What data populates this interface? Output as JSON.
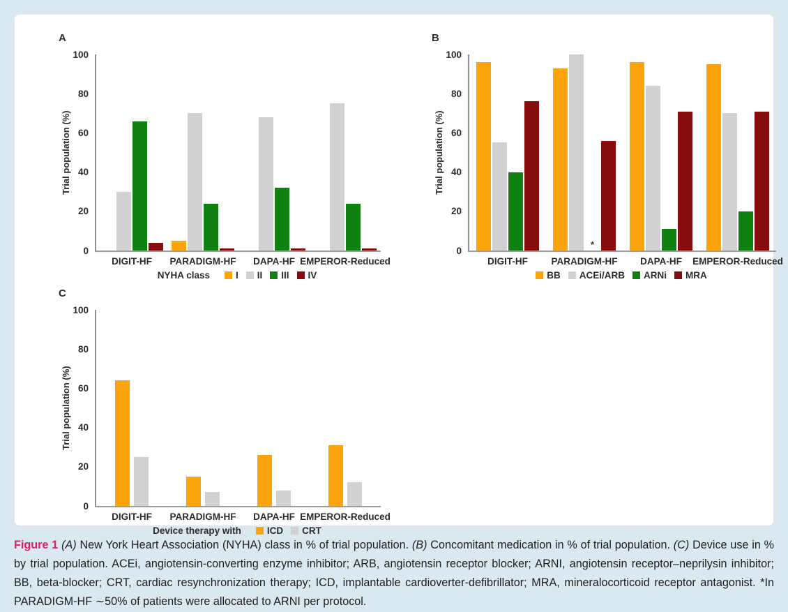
{
  "figure": {
    "page_background": "#dae8f0",
    "panel_background": "#ffffff"
  },
  "colors": {
    "orange": "#fca40e",
    "gray": "#d1d1d1",
    "green": "#0e8110",
    "maroon": "#870c0e",
    "figure_label_pink": "#e21a5f"
  },
  "chart_data": [
    {
      "type": "bar",
      "panel": "A",
      "ylabel": "Trial population (%)",
      "ylim": [
        0,
        100
      ],
      "yticks": [
        0,
        20,
        40,
        60,
        80,
        100
      ],
      "grid": false,
      "legend_position": "bottom",
      "legend_prefix": "NYHA class",
      "categories": [
        "DIGIT-HF",
        "PARADIGM-HF",
        "DAPA-HF",
        "EMPEROR-Reduced"
      ],
      "series": [
        {
          "name": "I",
          "color": "#fca40e",
          "values": [
            0,
            5,
            0,
            0
          ]
        },
        {
          "name": "II",
          "color": "#d1d1d1",
          "values": [
            30,
            70,
            68,
            75
          ]
        },
        {
          "name": "III",
          "color": "#0e8110",
          "values": [
            66,
            24,
            32,
            24
          ]
        },
        {
          "name": "IV",
          "color": "#870c0e",
          "values": [
            4,
            1,
            1,
            1
          ]
        }
      ]
    },
    {
      "type": "bar",
      "panel": "B",
      "ylabel": "Trial population (%)",
      "ylim": [
        0,
        100
      ],
      "yticks": [
        0,
        20,
        40,
        60,
        80,
        100
      ],
      "grid": false,
      "legend_position": "bottom",
      "legend_prefix": "",
      "null_marker": "*",
      "categories": [
        "DIGIT-HF",
        "PARADIGM-HF",
        "DAPA-HF",
        "EMPEROR-Reduced"
      ],
      "series": [
        {
          "name": "BB",
          "color": "#fca40e",
          "values": [
            96,
            93,
            96,
            95
          ]
        },
        {
          "name": "ACEi/ARB",
          "color": "#d1d1d1",
          "values": [
            55,
            100,
            84,
            70
          ]
        },
        {
          "name": "ARNi",
          "color": "#0e8110",
          "values": [
            40,
            null,
            11,
            20
          ]
        },
        {
          "name": "MRA",
          "color": "#870c0e",
          "values": [
            76,
            56,
            71,
            71
          ]
        }
      ],
      "annotation": "* at PARADIGM-HF ARNi position (no bar shown)"
    },
    {
      "type": "bar",
      "panel": "C",
      "ylabel": "Trial population (%)",
      "ylim": [
        0,
        100
      ],
      "yticks": [
        0,
        20,
        40,
        60,
        80,
        100
      ],
      "grid": false,
      "legend_position": "bottom",
      "legend_prefix": "Device therapy with",
      "categories": [
        "DIGIT-HF",
        "PARADIGM-HF",
        "DAPA-HF",
        "EMPEROR-Reduced"
      ],
      "series": [
        {
          "name": "ICD",
          "color": "#fca40e",
          "values": [
            64,
            15,
            26,
            31
          ]
        },
        {
          "name": "CRT",
          "color": "#d1d1d1",
          "values": [
            25,
            7,
            8,
            12
          ]
        }
      ]
    }
  ],
  "caption": {
    "label": "Figure 1",
    "panel_a_ref": "(A)",
    "text_a": "New York Heart Association (NYHA) class in % of trial population.",
    "panel_b_ref": "(B)",
    "text_b": "Concomitant medication in % of trial population.",
    "panel_c_ref": "(C)",
    "text_c": "Device use in % by trial population. ACEi, angiotensin-converting enzyme inhibitor; ARB, angiotensin receptor blocker; ARNI, angiotensin receptor–neprilysin inhibitor; BB, beta-blocker; CRT, cardiac resynchronization therapy; ICD, implantable cardioverter-defibrillator; MRA, mineralocorticoid receptor antagonist. *In PARADIGM-HF ∼50% of patients were allocated to ARNI per protocol."
  }
}
